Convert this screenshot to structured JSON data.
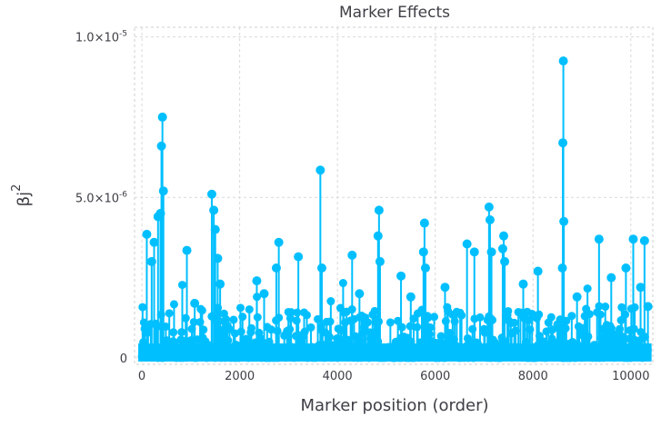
{
  "chart_data": {
    "type": "scatter",
    "title": "Marker Effects",
    "xlabel": "Marker position (order)",
    "ylabel": "βj",
    "ylabel_sup": "2",
    "xlim": [
      -150,
      10450
    ],
    "ylim": [
      -2e-07,
      1.03e-05
    ],
    "grid": true,
    "legend": "none",
    "color": "#00bfff",
    "x_ticks": [
      {
        "value": 0,
        "label": "0"
      },
      {
        "value": 2000,
        "label": "2000"
      },
      {
        "value": 4000,
        "label": "4000"
      },
      {
        "value": 6000,
        "label": "6000"
      },
      {
        "value": 8000,
        "label": "8000"
      },
      {
        "value": 10000,
        "label": "10000"
      }
    ],
    "y_ticks": [
      {
        "value": 0,
        "label": "0",
        "sup": ""
      },
      {
        "value": 5e-06,
        "label": "5.0×10",
        "sup": "-6"
      },
      {
        "value": 1e-05,
        "label": "1.0×10",
        "sup": "-5"
      }
    ],
    "peaks": [
      {
        "x": 420,
        "y": 7.5e-06
      },
      {
        "x": 400,
        "y": 6.6e-06
      },
      {
        "x": 380,
        "y": 4.5e-06
      },
      {
        "x": 330,
        "y": 4.4e-06
      },
      {
        "x": 250,
        "y": 3.6e-06
      },
      {
        "x": 100,
        "y": 3.85e-06
      },
      {
        "x": 200,
        "y": 3e-06
      },
      {
        "x": 440,
        "y": 5.2e-06
      },
      {
        "x": 920,
        "y": 3.35e-06
      },
      {
        "x": 1080,
        "y": 1.7e-06
      },
      {
        "x": 1430,
        "y": 5.1e-06
      },
      {
        "x": 1470,
        "y": 4.6e-06
      },
      {
        "x": 1500,
        "y": 4e-06
      },
      {
        "x": 1550,
        "y": 3.1e-06
      },
      {
        "x": 1600,
        "y": 2.3e-06
      },
      {
        "x": 2350,
        "y": 2.4e-06
      },
      {
        "x": 2500,
        "y": 2e-06
      },
      {
        "x": 2800,
        "y": 3.6e-06
      },
      {
        "x": 2750,
        "y": 2.8e-06
      },
      {
        "x": 3200,
        "y": 3.15e-06
      },
      {
        "x": 3650,
        "y": 5.85e-06
      },
      {
        "x": 3680,
        "y": 2.8e-06
      },
      {
        "x": 4300,
        "y": 3.2e-06
      },
      {
        "x": 4450,
        "y": 2e-06
      },
      {
        "x": 4850,
        "y": 4.6e-06
      },
      {
        "x": 4830,
        "y": 3.8e-06
      },
      {
        "x": 4870,
        "y": 3e-06
      },
      {
        "x": 5300,
        "y": 2.55e-06
      },
      {
        "x": 5500,
        "y": 1.9e-06
      },
      {
        "x": 5780,
        "y": 4.2e-06
      },
      {
        "x": 5760,
        "y": 3.3e-06
      },
      {
        "x": 5800,
        "y": 2.8e-06
      },
      {
        "x": 6200,
        "y": 2.2e-06
      },
      {
        "x": 6650,
        "y": 3.55e-06
      },
      {
        "x": 6800,
        "y": 3.3e-06
      },
      {
        "x": 7100,
        "y": 4.7e-06
      },
      {
        "x": 7120,
        "y": 4.3e-06
      },
      {
        "x": 7150,
        "y": 3.3e-06
      },
      {
        "x": 7400,
        "y": 3.8e-06
      },
      {
        "x": 7380,
        "y": 3.4e-06
      },
      {
        "x": 7420,
        "y": 3e-06
      },
      {
        "x": 7800,
        "y": 2.3e-06
      },
      {
        "x": 8100,
        "y": 2.7e-06
      },
      {
        "x": 8620,
        "y": 9.25e-06
      },
      {
        "x": 8610,
        "y": 6.7e-06
      },
      {
        "x": 8630,
        "y": 4.25e-06
      },
      {
        "x": 8600,
        "y": 2.8e-06
      },
      {
        "x": 8900,
        "y": 1.9e-06
      },
      {
        "x": 9350,
        "y": 3.7e-06
      },
      {
        "x": 9600,
        "y": 2.5e-06
      },
      {
        "x": 9900,
        "y": 2.8e-06
      },
      {
        "x": 10050,
        "y": 3.7e-06
      },
      {
        "x": 10280,
        "y": 3.65e-06
      },
      {
        "x": 10200,
        "y": 2.2e-06
      },
      {
        "x": 10350,
        "y": 1.6e-06
      }
    ]
  }
}
